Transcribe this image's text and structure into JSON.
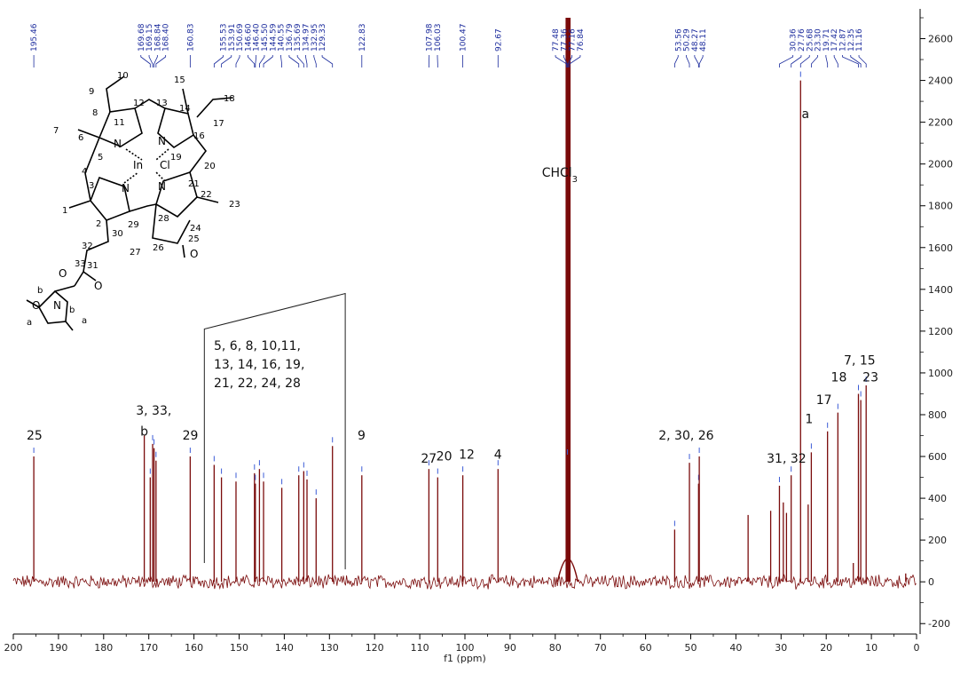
{
  "chart_data": {
    "type": "line",
    "x_axis_label": "f1 (ppm)",
    "x_range": [
      200,
      0
    ],
    "x_ticks": [
      200,
      190,
      180,
      170,
      160,
      150,
      140,
      130,
      120,
      110,
      100,
      90,
      80,
      70,
      60,
      50,
      40,
      30,
      20,
      10,
      0
    ],
    "y_range": [
      -250,
      2700
    ],
    "y_ticks": [
      -200,
      0,
      200,
      400,
      600,
      800,
      1000,
      1200,
      1400,
      1600,
      1800,
      2000,
      2200,
      2400,
      2600
    ],
    "colors": {
      "spectrum": "#7a0b0b",
      "peak_labels": "#1a2a9c",
      "axis": "#000000"
    },
    "peaks": [
      {
        "ppm": 195.46,
        "intensity": 600
      },
      {
        "ppm": 169.68,
        "intensity": 500
      },
      {
        "ppm": 169.15,
        "intensity": 660
      },
      {
        "ppm": 168.84,
        "intensity": 640
      },
      {
        "ppm": 168.4,
        "intensity": 580
      },
      {
        "ppm": 160.83,
        "intensity": 600
      },
      {
        "ppm": 155.53,
        "intensity": 560
      },
      {
        "ppm": 153.91,
        "intensity": 500
      },
      {
        "ppm": 150.69,
        "intensity": 480
      },
      {
        "ppm": 146.6,
        "intensity": 520
      },
      {
        "ppm": 146.4,
        "intensity": 470
      },
      {
        "ppm": 145.5,
        "intensity": 540
      },
      {
        "ppm": 144.59,
        "intensity": 480
      },
      {
        "ppm": 140.55,
        "intensity": 450
      },
      {
        "ppm": 136.79,
        "intensity": 510
      },
      {
        "ppm": 135.69,
        "intensity": 530
      },
      {
        "ppm": 134.97,
        "intensity": 490
      },
      {
        "ppm": 132.95,
        "intensity": 400
      },
      {
        "ppm": 129.33,
        "intensity": 650
      },
      {
        "ppm": 122.83,
        "intensity": 510
      },
      {
        "ppm": 107.98,
        "intensity": 540
      },
      {
        "ppm": 106.03,
        "intensity": 500
      },
      {
        "ppm": 100.47,
        "intensity": 510
      },
      {
        "ppm": 92.67,
        "intensity": 540
      },
      {
        "ppm": 77.48,
        "intensity": 2700
      },
      {
        "ppm": 77.36,
        "intensity": 2700
      },
      {
        "ppm": 77.16,
        "intensity": 2700
      },
      {
        "ppm": 76.84,
        "intensity": 2700
      },
      {
        "ppm": 53.56,
        "intensity": 250
      },
      {
        "ppm": 50.29,
        "intensity": 570
      },
      {
        "ppm": 48.27,
        "intensity": 470
      },
      {
        "ppm": 48.11,
        "intensity": 600
      },
      {
        "ppm": 30.36,
        "intensity": 460
      },
      {
        "ppm": 27.76,
        "intensity": 510
      },
      {
        "ppm": 25.68,
        "intensity": 2400
      },
      {
        "ppm": 23.3,
        "intensity": 620
      },
      {
        "ppm": 19.71,
        "intensity": 720
      },
      {
        "ppm": 17.42,
        "intensity": 810
      },
      {
        "ppm": 12.87,
        "intensity": 900
      },
      {
        "ppm": 12.35,
        "intensity": 870
      },
      {
        "ppm": 11.16,
        "intensity": 940
      }
    ],
    "unlabeled_peaks": [
      {
        "ppm": 171.0,
        "intensity": 700
      },
      {
        "ppm": 37.3,
        "intensity": 320
      },
      {
        "ppm": 32.3,
        "intensity": 340
      },
      {
        "ppm": 29.5,
        "intensity": 380
      },
      {
        "ppm": 28.8,
        "intensity": 330
      },
      {
        "ppm": 24.0,
        "intensity": 370
      },
      {
        "ppm": 14.0,
        "intensity": 90
      },
      {
        "ppm": 2.4,
        "intensity": 40
      }
    ],
    "peak_labels": [
      "195.46",
      "169.68",
      "169.15",
      "168.84",
      "168.40",
      "160.83",
      "155.53",
      "153.91",
      "150.69",
      "146.60",
      "146.40",
      "145.50",
      "144.59",
      "140.55",
      "136.79",
      "135.69",
      "134.97",
      "132.95",
      "129.33",
      "122.83",
      "107.98",
      "106.03",
      "100.47",
      "92.67",
      "77.48",
      "77.36",
      "77.16",
      "76.84",
      "53.56",
      "50.29",
      "48.27",
      "48.11",
      "30.36",
      "27.76",
      "25.68",
      "23.30",
      "19.71",
      "17.42",
      "12.87",
      "12.35",
      "11.16"
    ],
    "annotations": [
      {
        "text": "25",
        "ppm": 195.3,
        "y": 680
      },
      {
        "text": "3, 33,",
        "ppm": 168.9,
        "y": 800
      },
      {
        "text": "b",
        "ppm": 171.0,
        "y": 700
      },
      {
        "text": "29",
        "ppm": 160.8,
        "y": 680
      },
      {
        "text": "9",
        "ppm": 122.9,
        "y": 680
      },
      {
        "text": "27",
        "ppm": 108.0,
        "y": 570
      },
      {
        "text": "20",
        "ppm": 104.6,
        "y": 580
      },
      {
        "text": "12",
        "ppm": 99.6,
        "y": 590
      },
      {
        "text": "4",
        "ppm": 92.7,
        "y": 590
      },
      {
        "text": "CHCl3",
        "ppm": 79.0,
        "y": 1940
      },
      {
        "text": "2, 30, 26",
        "ppm": 51.0,
        "y": 680
      },
      {
        "text": "31, 32",
        "ppm": 28.8,
        "y": 570
      },
      {
        "text": "1",
        "ppm": 23.8,
        "y": 760
      },
      {
        "text": "17",
        "ppm": 20.5,
        "y": 850
      },
      {
        "text": "18",
        "ppm": 17.2,
        "y": 960
      },
      {
        "text": "7, 15",
        "ppm": 12.6,
        "y": 1040
      },
      {
        "text": "23",
        "ppm": 10.2,
        "y": 960
      },
      {
        "text": "a",
        "ppm": 24.6,
        "y": 2220
      }
    ],
    "bracket_label_lines": [
      "5, 6, 8, 10,11,",
      "13, 14, 16, 19,",
      "21, 22, 24, 28"
    ]
  },
  "molecule": {
    "labels": [
      "10",
      "9",
      "12",
      "13",
      "15",
      "18",
      "17",
      "8",
      "11",
      "14",
      "7",
      "6",
      "16",
      "N",
      "N",
      "5",
      "19",
      "In",
      "Cl",
      "20",
      "4",
      "21",
      "3",
      "N",
      "N",
      "22",
      "23",
      "1",
      "2",
      "29",
      "28",
      "24",
      "30",
      "27",
      "25",
      "O",
      "32",
      "31",
      "26",
      "33",
      "O",
      "O",
      "b",
      "N",
      "b",
      "O",
      "a",
      "a"
    ],
    "metal": "In",
    "ligand": "Cl"
  }
}
